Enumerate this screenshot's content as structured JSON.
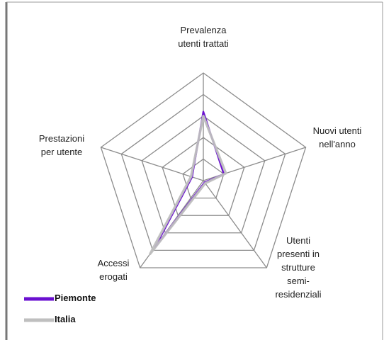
{
  "chart_data": {
    "type": "radar",
    "categories": [
      "Prevalenza utenti trattati",
      "Nuovi utenti nell'anno",
      "Utenti presenti in strutture semi-residenziali",
      "Accessi erogati",
      "Prestazioni per utente"
    ],
    "series": [
      {
        "name": "Piemonte",
        "color": "#6a0fd0",
        "values": [
          3.2,
          1.0,
          0.1,
          3.8,
          0.55
        ]
      },
      {
        "name": "Italia",
        "color": "#bfbfbf",
        "values": [
          3.0,
          1.1,
          0.15,
          4.2,
          0.6
        ]
      }
    ],
    "ylim": [
      0,
      5
    ],
    "yticks": [
      1,
      2,
      3,
      4,
      5
    ],
    "grid": true,
    "legend": "bottom-left"
  }
}
